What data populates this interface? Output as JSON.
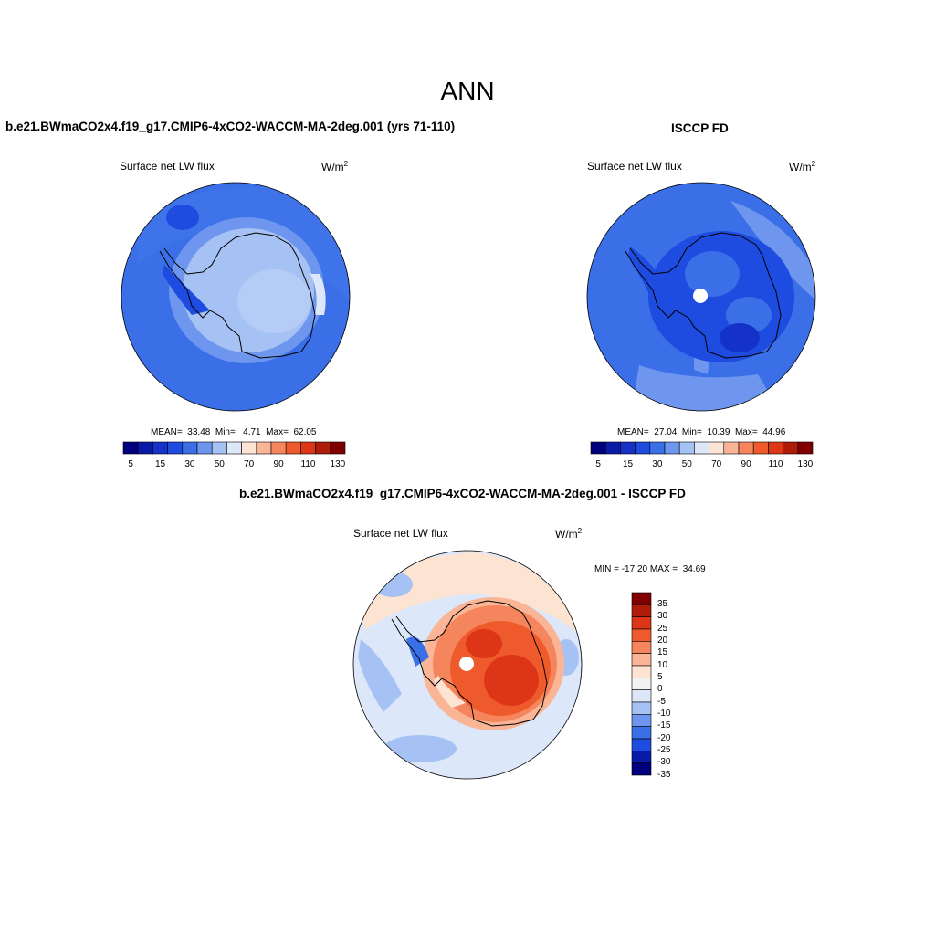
{
  "page_title": "ANN",
  "panels": [
    {
      "title": "b.e21.BWmaCO2x4.f19_g17.CMIP6-4xCO2-WACCM-MA-2deg.001 (yrs 71-110)",
      "left_label": "Surface net LW flux",
      "units": "W/m",
      "units_exp": "2",
      "stats": "MEAN=  33.48  Min=   4.71  Max=  62.05"
    },
    {
      "title": "ISCCP FD",
      "left_label": "Surface net LW flux",
      "units": "W/m",
      "units_exp": "2",
      "stats": "MEAN=  27.04  Min=  10.39  Max=  44.96"
    },
    {
      "title": "b.e21.BWmaCO2x4.f19_g17.CMIP6-4xCO2-WACCM-MA-2deg.001 - ISCCP FD",
      "left_label": "Surface net LW flux",
      "units": "W/m",
      "units_exp": "2",
      "stats": "MIN = -17.20 MAX =  34.69"
    }
  ],
  "colorbar_abs": {
    "colors": [
      "#00007f",
      "#0a1aa8",
      "#1432c8",
      "#1e4be0",
      "#3a6fe8",
      "#6e96ee",
      "#a6c2f4",
      "#dce8fa",
      "#fde3d2",
      "#f9b596",
      "#f5855c",
      "#ef5a2c",
      "#dc3518",
      "#b01c0a",
      "#800000"
    ],
    "tick_labels": [
      "5",
      "15",
      "30",
      "50",
      "70",
      "90",
      "110",
      "130"
    ]
  },
  "colorbar_diff": {
    "colors": [
      "#800000",
      "#b01c0a",
      "#dc3518",
      "#ef5a2c",
      "#f5855c",
      "#f9b596",
      "#fde3d2",
      "#f2f2f2",
      "#dce8fa",
      "#a6c2f4",
      "#6e96ee",
      "#3a6fe8",
      "#1e4be0",
      "#0a1aa8",
      "#00007f"
    ],
    "tick_labels": [
      "35",
      "30",
      "25",
      "20",
      "15",
      "10",
      "5",
      "0",
      "-5",
      "-10",
      "-15",
      "-20",
      "-25",
      "-30",
      "-35"
    ]
  }
}
